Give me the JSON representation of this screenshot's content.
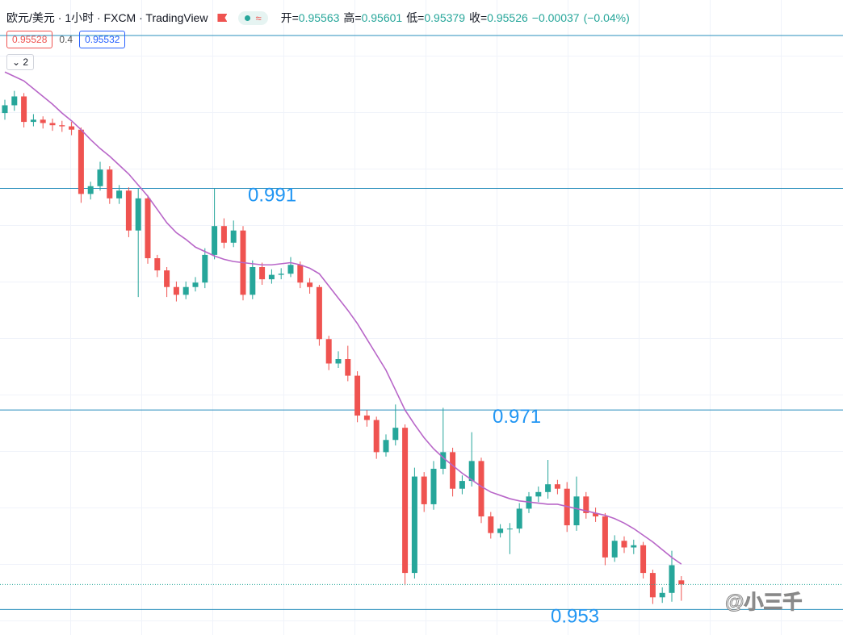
{
  "chart_data": {
    "type": "candlestick",
    "title": "欧元/美元 · 1小时 · FXCM · TradingView",
    "legend": {
      "open_label": "开=",
      "high_label": "高=",
      "low_label": "低=",
      "close_label": "收=",
      "change": {
        "value": -0.00037,
        "label": "−0.00037"
      },
      "change_pct": {
        "value": -0.04,
        "label": "(−0.04%)"
      }
    },
    "bid": 0.95528,
    "spread": 0.4,
    "ask": 0.95532,
    "indicator_count": 2,
    "watermark": "@小三千",
    "up_color": "#26a69a",
    "down_color": "#ef5350",
    "ma_color": "#b866c8",
    "level_color": "#2a8fbd",
    "level_label_color": "#2196f3",
    "ylim": [
      0.9507,
      1.008
    ],
    "hlines": [
      1.0048,
      0.991,
      0.971,
      0.953
    ],
    "ohlc": [
      [
        0.9978,
        0.999,
        0.9972,
        0.9985
      ],
      [
        0.9985,
        0.9998,
        0.998,
        0.9993
      ],
      [
        0.9993,
        0.9996,
        0.9965,
        0.997
      ],
      [
        0.997,
        0.9977,
        0.9966,
        0.9972
      ],
      [
        0.9972,
        0.9975,
        0.9964,
        0.9969
      ],
      [
        0.9969,
        0.9973,
        0.9962,
        0.9967
      ],
      [
        0.9967,
        0.9971,
        0.9961,
        0.9966
      ],
      [
        0.9966,
        0.997,
        0.9958,
        0.9963
      ],
      [
        0.9963,
        0.9965,
        0.9897,
        0.9905
      ],
      [
        0.9905,
        0.9916,
        0.99,
        0.9912
      ],
      [
        0.9912,
        0.9934,
        0.9908,
        0.9927
      ],
      [
        0.9927,
        0.993,
        0.9896,
        0.9901
      ],
      [
        0.9901,
        0.9913,
        0.9896,
        0.9908
      ],
      [
        0.9908,
        0.9911,
        0.9866,
        0.9872
      ],
      [
        0.9872,
        0.991,
        0.9812,
        0.9901
      ],
      [
        0.9901,
        0.9904,
        0.9842,
        0.9847
      ],
      [
        0.9847,
        0.985,
        0.983,
        0.9836
      ],
      [
        0.9836,
        0.9839,
        0.9812,
        0.9821
      ],
      [
        0.9821,
        0.9826,
        0.9808,
        0.9814
      ],
      [
        0.9814,
        0.9826,
        0.981,
        0.9821
      ],
      [
        0.9821,
        0.983,
        0.9817,
        0.9825
      ],
      [
        0.9825,
        0.9856,
        0.982,
        0.985
      ],
      [
        0.985,
        0.991,
        0.9846,
        0.9876
      ],
      [
        0.9876,
        0.9883,
        0.9856,
        0.9861
      ],
      [
        0.9861,
        0.9881,
        0.9857,
        0.9872
      ],
      [
        0.9872,
        0.9876,
        0.9809,
        0.9814
      ],
      [
        0.9814,
        0.9845,
        0.981,
        0.9839
      ],
      [
        0.9839,
        0.9843,
        0.9823,
        0.9828
      ],
      [
        0.9828,
        0.9837,
        0.9824,
        0.9832
      ],
      [
        0.9832,
        0.9838,
        0.9828,
        0.9833
      ],
      [
        0.9833,
        0.9848,
        0.983,
        0.9841
      ],
      [
        0.9841,
        0.9844,
        0.982,
        0.9825
      ],
      [
        0.9825,
        0.9829,
        0.9815,
        0.9821
      ],
      [
        0.9821,
        0.9823,
        0.9768,
        0.9774
      ],
      [
        0.9774,
        0.9777,
        0.9746,
        0.9752
      ],
      [
        0.9752,
        0.9763,
        0.9748,
        0.9756
      ],
      [
        0.9756,
        0.9768,
        0.9736,
        0.9741
      ],
      [
        0.9741,
        0.9745,
        0.9699,
        0.9705
      ],
      [
        0.9705,
        0.971,
        0.9695,
        0.9701
      ],
      [
        0.9701,
        0.9704,
        0.9666,
        0.9672
      ],
      [
        0.9672,
        0.9688,
        0.9668,
        0.9683
      ],
      [
        0.9683,
        0.9715,
        0.9678,
        0.9694
      ],
      [
        0.9694,
        0.9697,
        0.9552,
        0.9563
      ],
      [
        0.9563,
        0.9658,
        0.9558,
        0.965
      ],
      [
        0.965,
        0.9654,
        0.9618,
        0.9625
      ],
      [
        0.9625,
        0.9664,
        0.962,
        0.9657
      ],
      [
        0.9657,
        0.9712,
        0.9652,
        0.9672
      ],
      [
        0.9672,
        0.9676,
        0.9632,
        0.9639
      ],
      [
        0.9639,
        0.9651,
        0.9634,
        0.9646
      ],
      [
        0.9646,
        0.969,
        0.9641,
        0.9664
      ],
      [
        0.9664,
        0.9667,
        0.9608,
        0.9614
      ],
      [
        0.9614,
        0.9618,
        0.9594,
        0.9599
      ],
      [
        0.9599,
        0.9607,
        0.9595,
        0.9603
      ],
      [
        0.9603,
        0.9608,
        0.958,
        0.9603
      ],
      [
        0.9603,
        0.9626,
        0.9599,
        0.9621
      ],
      [
        0.9621,
        0.9636,
        0.9617,
        0.9632
      ],
      [
        0.9632,
        0.9641,
        0.9627,
        0.9636
      ],
      [
        0.9636,
        0.9665,
        0.963,
        0.9643
      ],
      [
        0.9643,
        0.9647,
        0.9634,
        0.9639
      ],
      [
        0.9639,
        0.9645,
        0.96,
        0.9606
      ],
      [
        0.9606,
        0.965,
        0.9601,
        0.9632
      ],
      [
        0.9632,
        0.9636,
        0.9612,
        0.9617
      ],
      [
        0.9617,
        0.9622,
        0.9609,
        0.9614
      ],
      [
        0.9614,
        0.9617,
        0.957,
        0.9577
      ],
      [
        0.9577,
        0.9597,
        0.9573,
        0.9592
      ],
      [
        0.9592,
        0.9596,
        0.9581,
        0.9586
      ],
      [
        0.9586,
        0.9593,
        0.958,
        0.9588
      ],
      [
        0.9588,
        0.9591,
        0.9558,
        0.9563
      ],
      [
        0.9563,
        0.9566,
        0.9535,
        0.9541
      ],
      [
        0.9541,
        0.955,
        0.9536,
        0.9545
      ],
      [
        0.9545,
        0.9583,
        0.9537,
        0.957
      ],
      [
        0.95563,
        0.95601,
        0.95379,
        0.95526
      ]
    ],
    "ma": [
      1.0015,
      1.0011,
      1.0007,
      1.0,
      0.9993,
      0.9986,
      0.9978,
      0.9971,
      0.9963,
      0.9954,
      0.9946,
      0.9939,
      0.9931,
      0.9923,
      0.9913,
      0.9903,
      0.9891,
      0.9879,
      0.987,
      0.9864,
      0.9857,
      0.9853,
      0.9849,
      0.9846,
      0.9844,
      0.9843,
      0.9842,
      0.9841,
      0.9841,
      0.9842,
      0.9843,
      0.9841,
      0.9838,
      0.9833,
      0.9822,
      0.9811,
      0.98,
      0.9788,
      0.9774,
      0.976,
      0.9746,
      0.9728,
      0.971,
      0.9697,
      0.9685,
      0.9675,
      0.9667,
      0.966,
      0.9653,
      0.9647,
      0.9641,
      0.9636,
      0.9633,
      0.963,
      0.9628,
      0.9627,
      0.9626,
      0.9625,
      0.9625,
      0.9623,
      0.9621,
      0.9619,
      0.9617,
      0.9615,
      0.9612,
      0.9608,
      0.9603,
      0.9597,
      0.9591,
      0.9584,
      0.9577,
      0.9571
    ]
  }
}
